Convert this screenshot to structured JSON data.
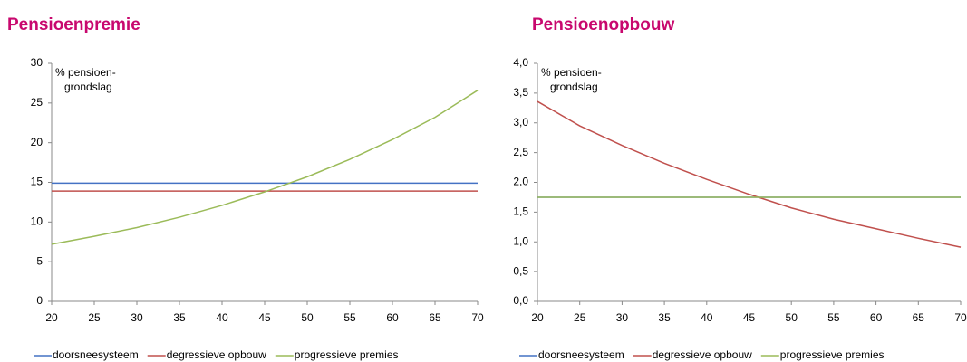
{
  "chart_data": [
    {
      "type": "line",
      "title": "Pensioenpremie",
      "annotations": [
        "% pensioen-",
        "grondslag"
      ],
      "x": [
        20,
        25,
        30,
        35,
        40,
        45,
        50,
        55,
        60,
        65,
        70
      ],
      "xlim": [
        20,
        70
      ],
      "xticks": [
        20,
        25,
        30,
        35,
        40,
        45,
        50,
        55,
        60,
        65,
        70
      ],
      "ylim": [
        0,
        30
      ],
      "yticks": [
        0,
        5,
        10,
        15,
        20,
        25,
        30
      ],
      "series": [
        {
          "name": "doorsneesysteem",
          "color": "#4472c4",
          "values": [
            14.9,
            14.9,
            14.9,
            14.9,
            14.9,
            14.9,
            14.9,
            14.9,
            14.9,
            14.9,
            14.9
          ]
        },
        {
          "name": "degressieve opbouw",
          "color": "#c0504d",
          "values": [
            13.9,
            13.9,
            13.9,
            13.9,
            13.9,
            13.9,
            13.9,
            13.9,
            13.9,
            13.9,
            13.9
          ]
        },
        {
          "name": "progressieve premies",
          "color": "#9bbb59",
          "values": [
            7.2,
            8.2,
            9.3,
            10.6,
            12.1,
            13.8,
            15.7,
            17.9,
            20.4,
            23.2,
            26.6
          ]
        }
      ]
    },
    {
      "type": "line",
      "title": "Pensioenopbouw",
      "annotations": [
        "% pensioen-",
        "grondslag"
      ],
      "x": [
        20,
        25,
        30,
        35,
        40,
        45,
        50,
        55,
        60,
        65,
        70
      ],
      "xlim": [
        20,
        70
      ],
      "xticks": [
        20,
        25,
        30,
        35,
        40,
        45,
        50,
        55,
        60,
        65,
        70
      ],
      "ylim": [
        0,
        4
      ],
      "yticks": [
        {
          "value": 0,
          "label": "0,0"
        },
        {
          "value": 0.5,
          "label": "0,5"
        },
        {
          "value": 1,
          "label": "1,0"
        },
        {
          "value": 1.5,
          "label": "1,5"
        },
        {
          "value": 2,
          "label": "2,0"
        },
        {
          "value": 2.5,
          "label": "2,5"
        },
        {
          "value": 3,
          "label": "3,0"
        },
        {
          "value": 3.5,
          "label": "3,5"
        },
        {
          "value": 4,
          "label": "4,0"
        }
      ],
      "series": [
        {
          "name": "doorsneesysteem",
          "color": "#4472c4",
          "values": [
            1.75,
            1.75,
            1.75,
            1.75,
            1.75,
            1.75,
            1.75,
            1.75,
            1.75,
            1.75,
            1.75
          ]
        },
        {
          "name": "degressieve opbouw",
          "color": "#c0504d",
          "values": [
            3.36,
            2.95,
            2.62,
            2.32,
            2.05,
            1.8,
            1.57,
            1.38,
            1.22,
            1.06,
            0.91
          ]
        },
        {
          "name": "progressieve premies",
          "color": "#9bbb59",
          "values": [
            1.75,
            1.75,
            1.75,
            1.75,
            1.75,
            1.75,
            1.75,
            1.75,
            1.75,
            1.75,
            1.75
          ]
        }
      ]
    }
  ]
}
